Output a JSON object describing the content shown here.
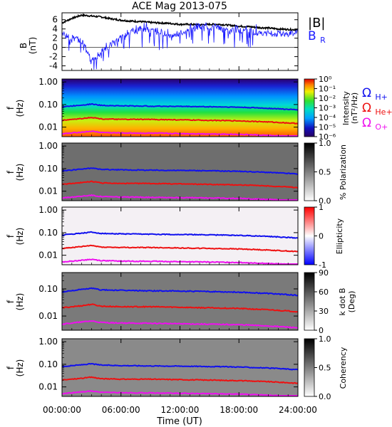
{
  "title": "ACE Mag 2013-075",
  "xlabel": "Time (UT)",
  "x_ticks": [
    "00:00:00",
    "06:00:00",
    "12:00:00",
    "18:00:00",
    "24:00:00"
  ],
  "colors": {
    "B_total": "#000000",
    "B_R": "#1a1aff",
    "gyro_H": "#1010ee",
    "gyro_He": "#ee1010",
    "gyro_O": "#ee10ee"
  },
  "legend": {
    "b_total": "|B|",
    "b_r_main": "B",
    "b_r_sub": "R",
    "h_main": "Ω",
    "h_sub": "H+",
    "he_main": "Ω",
    "he_sub": "He+",
    "o_main": "Ω",
    "o_sub": "O+"
  },
  "chart_data": [
    {
      "type": "line",
      "ylabel": "B",
      "yunit": "(nT)",
      "y_ticks": [
        "6",
        "4",
        "2",
        "0",
        "-2",
        "-4"
      ],
      "ylim": [
        -5,
        7.5
      ],
      "xlim": [
        0,
        24
      ],
      "series": [
        {
          "name": "|B|",
          "x": [
            0,
            1,
            2,
            3,
            4,
            5,
            6,
            7,
            8,
            9,
            10,
            11,
            12,
            13,
            14,
            15,
            16,
            17,
            18,
            19,
            20,
            21,
            22,
            23,
            24
          ],
          "values": [
            5.3,
            6.3,
            7.0,
            6.8,
            6.6,
            6.2,
            5.9,
            5.7,
            5.6,
            5.4,
            5.3,
            5.2,
            5.0,
            5.0,
            4.9,
            5.0,
            5.0,
            4.8,
            4.6,
            4.5,
            4.3,
            4.2,
            4.0,
            3.9,
            3.8
          ]
        },
        {
          "name": "B_R",
          "x": [
            0,
            1,
            2,
            3,
            4,
            5,
            6,
            7,
            8,
            9,
            10,
            11,
            12,
            13,
            14,
            15,
            16,
            17,
            18,
            19,
            20,
            21,
            22,
            23,
            24
          ],
          "values": [
            3.0,
            2.0,
            1.5,
            -3.0,
            -1.0,
            0.5,
            2.0,
            3.5,
            4.0,
            3.8,
            3.5,
            2.5,
            3.0,
            4.0,
            4.5,
            4.5,
            4.3,
            3.5,
            3.8,
            3.5,
            3.2,
            3.0,
            3.0,
            3.0,
            3.2
          ]
        }
      ]
    },
    {
      "type": "heatmap",
      "ylabel": "f",
      "yunit": "(Hz)",
      "y_ticks": [
        "1.00",
        "0.10",
        "0.01"
      ],
      "colorbar_label": "Intensity",
      "colorbar_unit": "(nT²/Hz)",
      "colorbar_ticks": [
        "10⁰",
        "10⁻¹",
        "10⁻²",
        "10⁻³",
        "10⁻⁴",
        "10⁻⁵",
        "10⁻⁶"
      ]
    },
    {
      "type": "heatmap",
      "ylabel": "f",
      "yunit": "(Hz)",
      "y_ticks": [
        "1.00",
        "0.10",
        "0.01"
      ],
      "colorbar_label": "% Polarization",
      "colorbar_ticks": [
        "1.0",
        "0.5",
        "0.0"
      ]
    },
    {
      "type": "heatmap",
      "ylabel": "f",
      "yunit": "(Hz)",
      "y_ticks": [
        "1.00",
        "0.10",
        "0.01"
      ],
      "colorbar_label": "Ellipticity",
      "colorbar_ticks": [
        "1",
        "0",
        "-1"
      ]
    },
    {
      "type": "heatmap",
      "ylabel": "f",
      "yunit": "(Hz)",
      "y_ticks": [
        "0.10",
        "0.01"
      ],
      "colorbar_label": "k dot B",
      "colorbar_unit": "(Deg)",
      "colorbar_ticks": [
        "90",
        "60",
        "30",
        "0"
      ]
    },
    {
      "type": "heatmap",
      "ylabel": "f",
      "yunit": "(Hz)",
      "y_ticks": [
        "1.00",
        "0.10",
        "0.01"
      ],
      "colorbar_label": "Coherency",
      "colorbar_ticks": [
        "1.0",
        "0.5",
        "0.0"
      ]
    }
  ],
  "gyrofrequency_lines": {
    "x": [
      0,
      2,
      3,
      4,
      6,
      9,
      12,
      15,
      18,
      21,
      24
    ],
    "H_plus": [
      0.078,
      0.095,
      0.105,
      0.092,
      0.088,
      0.085,
      0.083,
      0.08,
      0.076,
      0.068,
      0.058
    ],
    "He_plus": [
      0.02,
      0.024,
      0.027,
      0.023,
      0.022,
      0.022,
      0.021,
      0.02,
      0.019,
      0.017,
      0.0145
    ],
    "O_plus": [
      0.005,
      0.006,
      0.0066,
      0.0058,
      0.0055,
      0.0054,
      0.0052,
      0.005,
      0.0048,
      0.0043,
      0.0037
    ]
  }
}
